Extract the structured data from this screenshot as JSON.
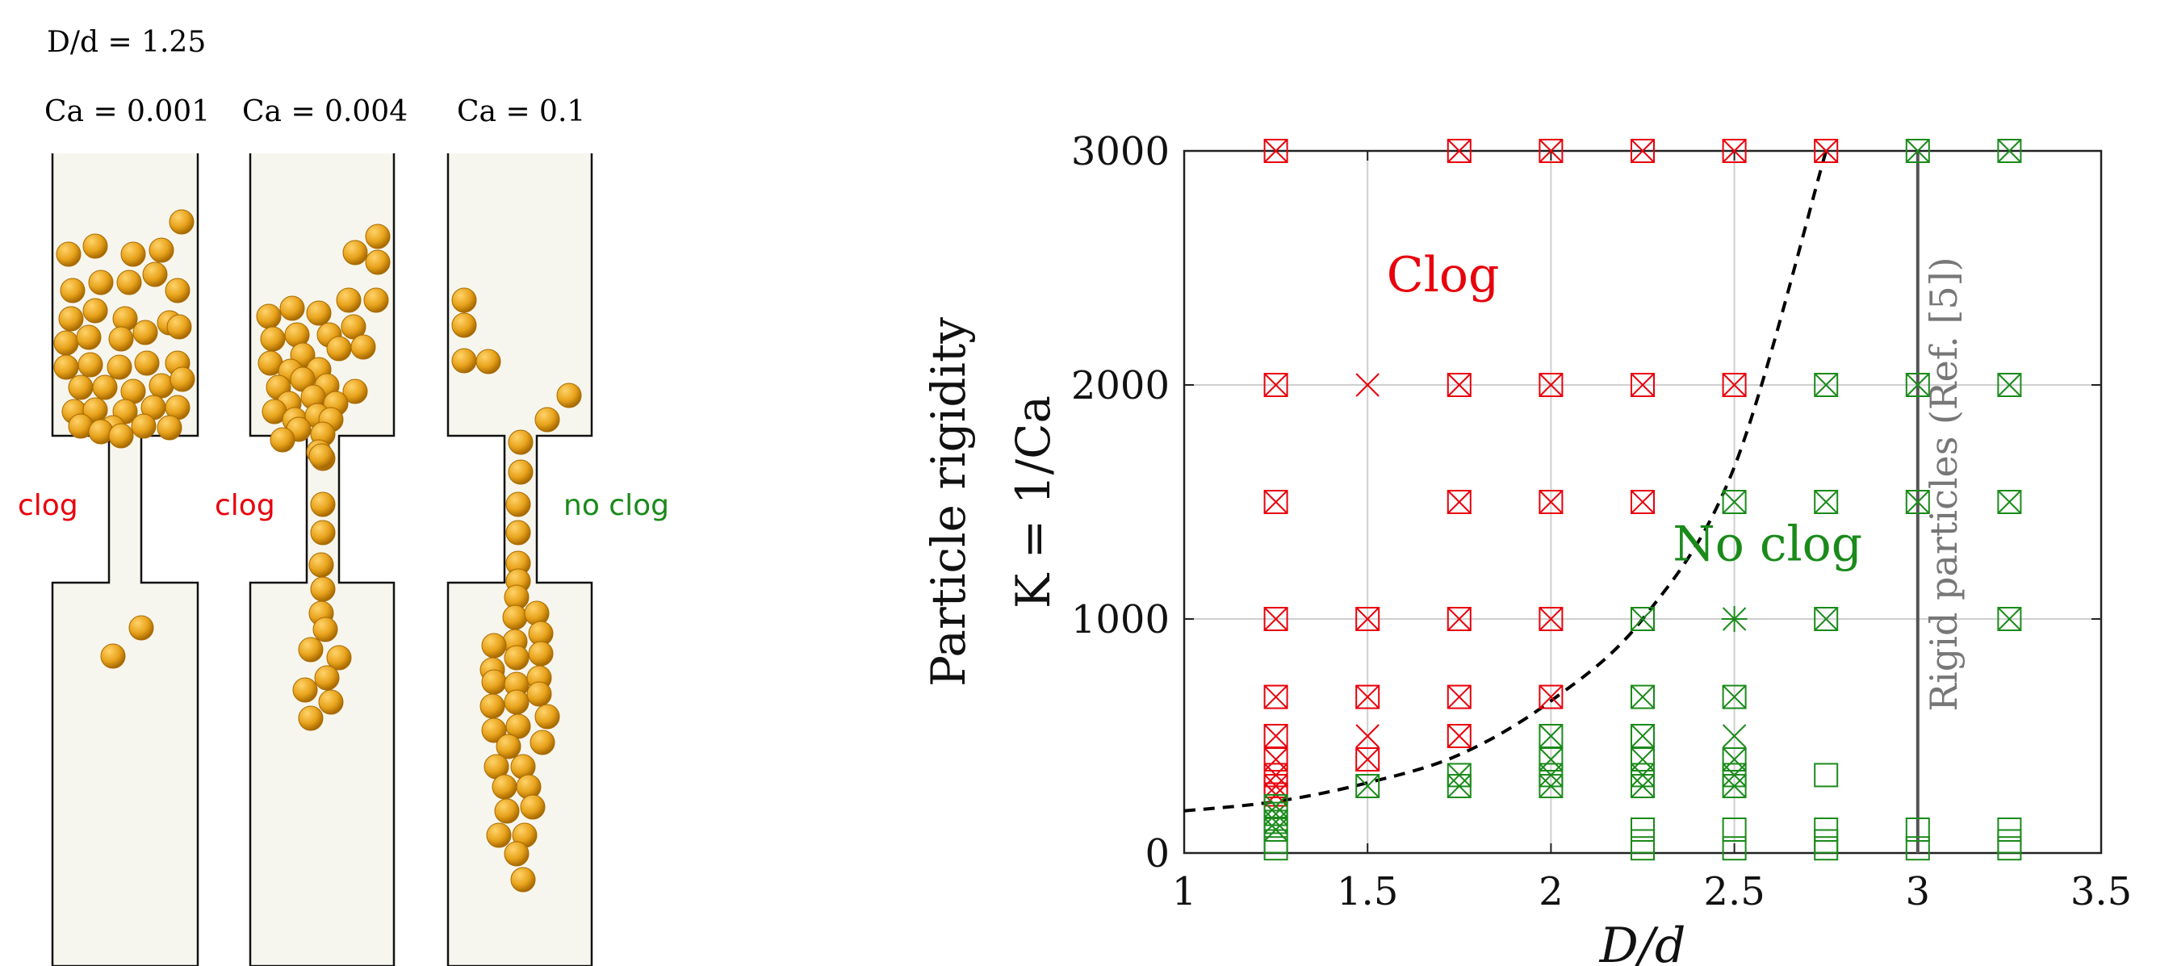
{
  "left_panel": {
    "ratio_label": "D/d = 1.25",
    "columns": [
      {
        "ca_label": "Ca = 0.001",
        "outcome": "clog",
        "outcome_color": "#e8000b"
      },
      {
        "ca_label": "Ca = 0.004",
        "outcome": "clog",
        "outcome_color": "#e8000b"
      },
      {
        "ca_label": "Ca = 0.1",
        "outcome": "no clog",
        "outcome_color": "#1a8a1a"
      }
    ],
    "particle_color": "#e8a31c",
    "channel_fill": "#f7f6ee"
  },
  "chart_data": {
    "type": "scatter",
    "xlabel": "D/d",
    "ylabel_line1": "Particle rigidity",
    "ylabel_line2": "K = 1/Ca",
    "xlim": [
      1,
      3.5
    ],
    "ylim": [
      0,
      3000
    ],
    "xticks": [
      1,
      1.5,
      2,
      2.5,
      3,
      3.5
    ],
    "xtick_labels": [
      "1",
      "1.5",
      "2",
      "2.5",
      "3",
      "3.5"
    ],
    "yticks": [
      0,
      1000,
      2000,
      3000
    ],
    "ytick_labels": [
      "0",
      "1000",
      "2000",
      "3000"
    ],
    "grid": true,
    "region_labels": [
      {
        "text": "Clog",
        "x": 1.75,
        "y": 2400,
        "color": "#e8000b"
      },
      {
        "text": "No clog",
        "x": 2.75,
        "y": 1250,
        "color": "#1a8a1a"
      }
    ],
    "rigid_line": {
      "x": 3.0,
      "label": "Rigid particles (Ref. [5])",
      "color": "#555555"
    },
    "boundary_curve": {
      "style": "dashed",
      "x": [
        1.0,
        1.25,
        1.5,
        1.75,
        2.0,
        2.25,
        2.5,
        2.75
      ],
      "y": [
        180,
        220,
        300,
        420,
        650,
        1000,
        1650,
        3000
      ]
    },
    "colors": {
      "clog": "#e8000b",
      "no_clog": "#1a8a1a"
    },
    "series": [
      {
        "name": "clog",
        "points": [
          {
            "x": 1.25,
            "y": 3000,
            "m": "sx"
          },
          {
            "x": 1.75,
            "y": 3000,
            "m": "sx"
          },
          {
            "x": 2.0,
            "y": 3000,
            "m": "sx"
          },
          {
            "x": 2.25,
            "y": 3000,
            "m": "sx"
          },
          {
            "x": 2.5,
            "y": 3000,
            "m": "sx"
          },
          {
            "x": 2.75,
            "y": 3000,
            "m": "sx"
          },
          {
            "x": 1.25,
            "y": 2000,
            "m": "sx"
          },
          {
            "x": 1.5,
            "y": 2000,
            "m": "x"
          },
          {
            "x": 1.75,
            "y": 2000,
            "m": "sx"
          },
          {
            "x": 2.0,
            "y": 2000,
            "m": "sx"
          },
          {
            "x": 2.25,
            "y": 2000,
            "m": "sx"
          },
          {
            "x": 2.5,
            "y": 2000,
            "m": "sx"
          },
          {
            "x": 1.25,
            "y": 1500,
            "m": "sx"
          },
          {
            "x": 1.75,
            "y": 1500,
            "m": "sx"
          },
          {
            "x": 2.0,
            "y": 1500,
            "m": "sx"
          },
          {
            "x": 2.25,
            "y": 1500,
            "m": "sx"
          },
          {
            "x": 1.25,
            "y": 1000,
            "m": "sx"
          },
          {
            "x": 1.5,
            "y": 1000,
            "m": "sx"
          },
          {
            "x": 1.75,
            "y": 1000,
            "m": "sx"
          },
          {
            "x": 2.0,
            "y": 1000,
            "m": "sx"
          },
          {
            "x": 1.25,
            "y": 667,
            "m": "sx"
          },
          {
            "x": 1.5,
            "y": 667,
            "m": "sx"
          },
          {
            "x": 1.75,
            "y": 667,
            "m": "sx"
          },
          {
            "x": 2.0,
            "y": 667,
            "m": "sx"
          },
          {
            "x": 1.25,
            "y": 500,
            "m": "sx"
          },
          {
            "x": 1.5,
            "y": 500,
            "m": "x"
          },
          {
            "x": 1.75,
            "y": 500,
            "m": "sx"
          },
          {
            "x": 1.25,
            "y": 400,
            "m": "sx"
          },
          {
            "x": 1.5,
            "y": 400,
            "m": "sx"
          },
          {
            "x": 1.25,
            "y": 333,
            "m": "sx"
          },
          {
            "x": 1.25,
            "y": 286,
            "m": "sx"
          },
          {
            "x": 1.25,
            "y": 250,
            "m": "sx"
          }
        ]
      },
      {
        "name": "no clog",
        "points": [
          {
            "x": 3.0,
            "y": 3000,
            "m": "sx"
          },
          {
            "x": 3.25,
            "y": 3000,
            "m": "sx"
          },
          {
            "x": 2.75,
            "y": 2000,
            "m": "sx"
          },
          {
            "x": 3.0,
            "y": 2000,
            "m": "sx"
          },
          {
            "x": 3.25,
            "y": 2000,
            "m": "sx"
          },
          {
            "x": 2.5,
            "y": 1500,
            "m": "sx"
          },
          {
            "x": 2.75,
            "y": 1500,
            "m": "sx"
          },
          {
            "x": 3.0,
            "y": 1500,
            "m": "sx"
          },
          {
            "x": 3.25,
            "y": 1500,
            "m": "sx"
          },
          {
            "x": 2.25,
            "y": 1000,
            "m": "sx"
          },
          {
            "x": 2.5,
            "y": 1000,
            "m": "star"
          },
          {
            "x": 2.75,
            "y": 1000,
            "m": "sx"
          },
          {
            "x": 3.25,
            "y": 1000,
            "m": "sx"
          },
          {
            "x": 2.25,
            "y": 667,
            "m": "sx"
          },
          {
            "x": 2.5,
            "y": 667,
            "m": "sx"
          },
          {
            "x": 2.0,
            "y": 500,
            "m": "sx"
          },
          {
            "x": 2.25,
            "y": 500,
            "m": "sx"
          },
          {
            "x": 2.5,
            "y": 500,
            "m": "x"
          },
          {
            "x": 2.0,
            "y": 400,
            "m": "sx"
          },
          {
            "x": 2.25,
            "y": 400,
            "m": "sx"
          },
          {
            "x": 2.5,
            "y": 400,
            "m": "sx"
          },
          {
            "x": 1.75,
            "y": 333,
            "m": "sx"
          },
          {
            "x": 2.0,
            "y": 333,
            "m": "sx"
          },
          {
            "x": 2.25,
            "y": 333,
            "m": "sx"
          },
          {
            "x": 2.5,
            "y": 333,
            "m": "sx"
          },
          {
            "x": 2.75,
            "y": 333,
            "m": "s"
          },
          {
            "x": 1.5,
            "y": 286,
            "m": "sx"
          },
          {
            "x": 1.75,
            "y": 286,
            "m": "sx"
          },
          {
            "x": 2.0,
            "y": 286,
            "m": "sx"
          },
          {
            "x": 2.25,
            "y": 286,
            "m": "sx"
          },
          {
            "x": 2.5,
            "y": 286,
            "m": "sx"
          },
          {
            "x": 1.25,
            "y": 200,
            "m": "sx"
          },
          {
            "x": 1.25,
            "y": 167,
            "m": "sx"
          },
          {
            "x": 1.25,
            "y": 133,
            "m": "sx"
          },
          {
            "x": 1.25,
            "y": 100,
            "m": "sx"
          },
          {
            "x": 1.25,
            "y": 50,
            "m": "s"
          },
          {
            "x": 1.25,
            "y": 20,
            "m": "s"
          },
          {
            "x": 2.25,
            "y": 100,
            "m": "s"
          },
          {
            "x": 2.25,
            "y": 50,
            "m": "s"
          },
          {
            "x": 2.25,
            "y": 20,
            "m": "s"
          },
          {
            "x": 2.5,
            "y": 100,
            "m": "s"
          },
          {
            "x": 2.5,
            "y": 20,
            "m": "s"
          },
          {
            "x": 2.75,
            "y": 100,
            "m": "s"
          },
          {
            "x": 2.75,
            "y": 50,
            "m": "s"
          },
          {
            "x": 2.75,
            "y": 20,
            "m": "s"
          },
          {
            "x": 3.0,
            "y": 100,
            "m": "s"
          },
          {
            "x": 3.0,
            "y": 20,
            "m": "s"
          },
          {
            "x": 3.25,
            "y": 100,
            "m": "s"
          },
          {
            "x": 3.25,
            "y": 50,
            "m": "s"
          },
          {
            "x": 3.25,
            "y": 20,
            "m": "s"
          }
        ]
      }
    ]
  }
}
